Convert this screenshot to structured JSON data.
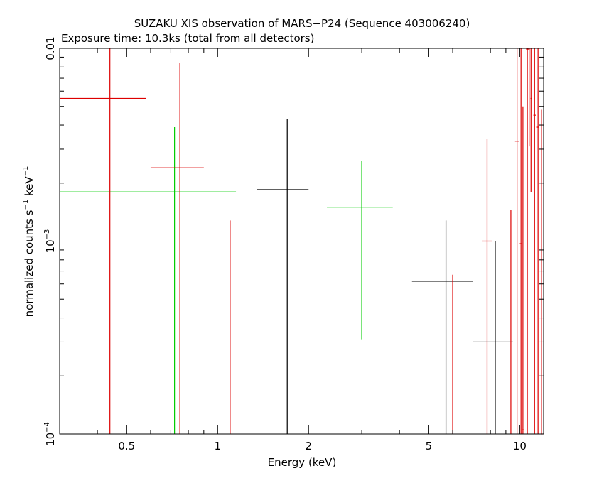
{
  "chart_data": {
    "type": "scatter",
    "title": "SUZAKU XIS observation of MARS−P24 (Sequence 403006240)",
    "subtitle": "Exposure time: 10.3ks (total from all detectors)",
    "xlabel": "Energy (keV)",
    "ylabel_main": "normalized counts s",
    "ylabel_exp1": "−1",
    "ylabel_mid": " keV",
    "ylabel_exp2": "−1",
    "x_scale": "log",
    "y_scale": "log",
    "xlim": [
      0.3,
      12
    ],
    "ylim": [
      0.0001,
      0.01
    ],
    "x_ticks": [
      {
        "value": 0.5,
        "label": "0.5"
      },
      {
        "value": 1,
        "label": "1"
      },
      {
        "value": 2,
        "label": "2"
      },
      {
        "value": 5,
        "label": "5"
      },
      {
        "value": 10,
        "label": "10"
      }
    ],
    "y_ticks": [
      {
        "value": 0.0001,
        "base": "10",
        "exp": "−4"
      },
      {
        "value": 0.001,
        "base": "10",
        "exp": "−3"
      },
      {
        "value": 0.01,
        "base": "",
        "exp": "0.01"
      }
    ],
    "series": [
      {
        "color": "#000000",
        "points": [
          {
            "x": 1.7,
            "xlo": 1.35,
            "xhi": 2.0,
            "y": 0.00185,
            "ylo": 0.0001,
            "yhi": 0.0043
          },
          {
            "x": 5.7,
            "xlo": 4.4,
            "xhi": 7.0,
            "y": 0.00062,
            "ylo": 0.0001,
            "yhi": 0.00128
          },
          {
            "x": 8.3,
            "xlo": 7.0,
            "xhi": 9.5,
            "y": 0.0003,
            "ylo": 0.0001,
            "yhi": 0.001
          }
        ]
      },
      {
        "color": "#00cc00",
        "points": [
          {
            "x": 0.72,
            "xlo": 0.3,
            "xhi": 1.15,
            "y": 0.0018,
            "ylo": 0.0001,
            "yhi": 0.0039
          },
          {
            "x": 3.0,
            "xlo": 2.3,
            "xhi": 3.8,
            "y": 0.0015,
            "ylo": 0.00031,
            "yhi": 0.0026
          }
        ]
      },
      {
        "color": "#dd0000",
        "points": [
          {
            "x": 0.44,
            "xlo": 0.3,
            "xhi": 0.58,
            "y": 0.0055,
            "ylo": 0.0001,
            "yhi": 0.01
          },
          {
            "x": 0.75,
            "xlo": 0.6,
            "xhi": 0.9,
            "y": 0.0024,
            "ylo": 0.0001,
            "yhi": 0.0084
          },
          {
            "x": 1.1,
            "xlo": 1.1,
            "xhi": 1.1,
            "y": 0.0001,
            "ylo": 0.0001,
            "yhi": 0.00128
          },
          {
            "x": 6.0,
            "xlo": 6.0,
            "xhi": 6.0,
            "y": 0.0001,
            "ylo": 0.0001,
            "yhi": 0.00067
          },
          {
            "x": 7.8,
            "xlo": 7.5,
            "xhi": 8.1,
            "y": 0.001,
            "ylo": 0.0001,
            "yhi": 0.0034
          },
          {
            "x": 9.35,
            "xlo": 9.35,
            "xhi": 9.35,
            "y": 0.0001,
            "ylo": 0.0001,
            "yhi": 0.00145
          },
          {
            "x": 9.8,
            "xlo": 9.65,
            "xhi": 9.95,
            "y": 0.0033,
            "ylo": 0.0001,
            "yhi": 0.01
          },
          {
            "x": 10.1,
            "xlo": 10.0,
            "xhi": 10.2,
            "y": 0.00097,
            "ylo": 0.0001,
            "yhi": 0.01
          },
          {
            "x": 10.25,
            "xlo": 10.15,
            "xhi": 10.35,
            "y": 0.000105,
            "ylo": 0.0001,
            "yhi": 0.005
          },
          {
            "x": 10.6,
            "xlo": 10.5,
            "xhi": 10.7,
            "y": 0.0099,
            "ylo": 0.0001,
            "yhi": 0.01
          },
          {
            "x": 10.75,
            "xlo": 10.7,
            "xhi": 10.8,
            "y": 0.0099,
            "ylo": 0.0031,
            "yhi": 0.01
          },
          {
            "x": 10.9,
            "xlo": 10.85,
            "xhi": 10.95,
            "y": 0.0055,
            "ylo": 0.0018,
            "yhi": 0.01
          },
          {
            "x": 11.2,
            "xlo": 11.1,
            "xhi": 11.3,
            "y": 0.0045,
            "ylo": 0.0001,
            "yhi": 0.01
          },
          {
            "x": 11.5,
            "xlo": 11.4,
            "xhi": 11.6,
            "y": 0.0039,
            "ylo": 0.0001,
            "yhi": 0.01
          },
          {
            "x": 11.8,
            "xlo": 11.75,
            "xhi": 11.9,
            "y": 0.0001,
            "ylo": 0.0001,
            "yhi": 0.0048
          }
        ]
      }
    ]
  }
}
